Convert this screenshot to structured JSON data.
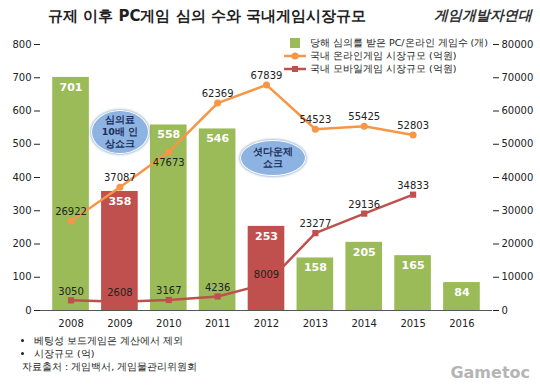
{
  "chart_data": {
    "type": "bar",
    "title": "규제 이후 PC게임 심의 수와 국내게임시장규모",
    "categories": [
      "2008",
      "2009",
      "2010",
      "2011",
      "2012",
      "2013",
      "2014",
      "2015",
      "2016"
    ],
    "series": [
      {
        "name": "당해 심의를 받은 PC/온라인 게임수 (개)",
        "type": "bar",
        "color": "#9bbb59",
        "colors": [
          "#9bbb59",
          "#c0504d",
          "#9bbb59",
          "#9bbb59",
          "#c0504d",
          "#9bbb59",
          "#9bbb59",
          "#9bbb59",
          "#9bbb59"
        ],
        "values": [
          701,
          358,
          558,
          546,
          253,
          158,
          205,
          165,
          84
        ]
      },
      {
        "name": "국내 온라인게임 시장규모 (억원)",
        "type": "line",
        "axis": "y2",
        "color": "#f79646",
        "marker": "circle",
        "values": [
          26922,
          37087,
          47673,
          62369,
          67839,
          54523,
          55425,
          52803,
          null
        ]
      },
      {
        "name": "국내 모바일게임 시장규모 (억원)",
        "type": "line",
        "axis": "y2",
        "color": "#c0504d",
        "marker": "square",
        "values": [
          3050,
          2608,
          3167,
          4236,
          8009,
          23277,
          29136,
          34833,
          null
        ]
      }
    ],
    "ylim": [
      0,
      800
    ],
    "yticks": [
      0,
      100,
      200,
      300,
      400,
      500,
      600,
      700,
      800
    ],
    "y2lim": [
      0,
      80000
    ],
    "y2ticks": [
      0,
      10000,
      20000,
      30000,
      40000,
      50000,
      60000,
      70000,
      80000
    ],
    "grid": false,
    "legend": "top-right",
    "data_labels": true,
    "annotations": [
      "심의료 10배 인상쇼크",
      "셧다운제 쇼크"
    ],
    "footnotes": [
      "베팅성 보드게임은 계산에서 제외",
      "시장규모 (억)"
    ],
    "source": "자료출처 : 게임백서, 게임물관리위원회",
    "logo": "게임개발자연대",
    "watermark": "Gametoc"
  }
}
